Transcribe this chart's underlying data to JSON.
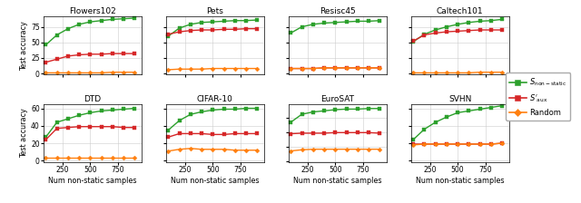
{
  "x": [
    100,
    200,
    300,
    400,
    500,
    600,
    700,
    800,
    900
  ],
  "subplots": [
    {
      "title": "Flowers102",
      "green": [
        46,
        62,
        72,
        79,
        83,
        85,
        87,
        88,
        89
      ],
      "red": [
        18,
        23,
        28,
        30,
        31,
        31,
        32,
        32,
        32
      ],
      "orange": [
        1,
        1,
        1,
        1,
        1,
        1,
        2,
        2,
        2
      ],
      "ylim": [
        -2,
        92
      ],
      "yticks": [
        0,
        25,
        50,
        75
      ]
    },
    {
      "title": "Pets",
      "green": [
        60,
        73,
        79,
        82,
        83,
        84,
        85,
        85,
        86
      ],
      "red": [
        63,
        67,
        69,
        70,
        70,
        71,
        71,
        72,
        72
      ],
      "orange": [
        6,
        7,
        7,
        7,
        8,
        8,
        8,
        8,
        8
      ],
      "ylim": [
        -2,
        92
      ],
      "yticks": [
        0,
        25,
        50,
        75
      ]
    },
    {
      "title": "Resisc45",
      "green": [
        65,
        75,
        79,
        81,
        82,
        83,
        84,
        84,
        85
      ],
      "red": [
        8,
        8,
        8,
        9,
        9,
        9,
        9,
        9,
        9
      ],
      "orange": [
        8,
        8,
        8,
        9,
        9,
        9,
        9,
        9,
        9
      ],
      "ylim": [
        -2,
        92
      ],
      "yticks": [
        0,
        25,
        50,
        75
      ]
    },
    {
      "title": "Caltech101",
      "green": [
        51,
        63,
        70,
        75,
        79,
        82,
        84,
        85,
        87
      ],
      "red": [
        52,
        62,
        65,
        67,
        68,
        69,
        70,
        70,
        70
      ],
      "orange": [
        1,
        1,
        1,
        1,
        1,
        1,
        2,
        2,
        2
      ],
      "ylim": [
        -2,
        92
      ],
      "yticks": [
        0,
        25,
        50,
        75
      ]
    },
    {
      "title": "DTD",
      "green": [
        27,
        44,
        48,
        52,
        55,
        57,
        58,
        59,
        60
      ],
      "red": [
        24,
        37,
        38,
        39,
        39,
        39,
        39,
        38,
        38
      ],
      "orange": [
        3,
        3,
        3,
        3,
        3,
        3,
        3,
        3,
        3
      ],
      "ylim": [
        -2,
        65
      ],
      "yticks": [
        0,
        20,
        40,
        60
      ]
    },
    {
      "title": "CIFAR-10",
      "green": [
        35,
        46,
        53,
        56,
        58,
        59,
        59,
        60,
        60
      ],
      "red": [
        27,
        31,
        31,
        31,
        30,
        30,
        31,
        31,
        31
      ],
      "orange": [
        11,
        13,
        14,
        13,
        13,
        13,
        12,
        12,
        12
      ],
      "ylim": [
        -2,
        65
      ],
      "yticks": [
        0,
        20,
        40,
        60
      ]
    },
    {
      "title": "EuroSAT",
      "green": [
        68,
        82,
        86,
        88,
        90,
        91,
        91,
        92,
        92
      ],
      "red": [
        48,
        49,
        49,
        49,
        50,
        50,
        50,
        50,
        49
      ],
      "orange": [
        18,
        20,
        21,
        21,
        21,
        21,
        21,
        21,
        21
      ],
      "ylim": [
        -2,
        100
      ],
      "yticks": [
        0,
        25,
        50,
        75
      ]
    },
    {
      "title": "SVHN",
      "green": [
        24,
        36,
        44,
        50,
        55,
        57,
        59,
        61,
        63
      ],
      "red": [
        19,
        19,
        19,
        19,
        19,
        19,
        19,
        19,
        20
      ],
      "orange": [
        18,
        19,
        19,
        19,
        19,
        19,
        19,
        19,
        20
      ],
      "ylim": [
        -2,
        65
      ],
      "yticks": [
        0,
        20,
        40,
        60
      ]
    }
  ],
  "green_color": "#2ca02c",
  "red_color": "#d62728",
  "orange_color": "#ff7f0e",
  "xlabel": "Num non-static samples",
  "ylabel": "Test accuracy",
  "xticks": [
    250,
    500,
    750
  ]
}
